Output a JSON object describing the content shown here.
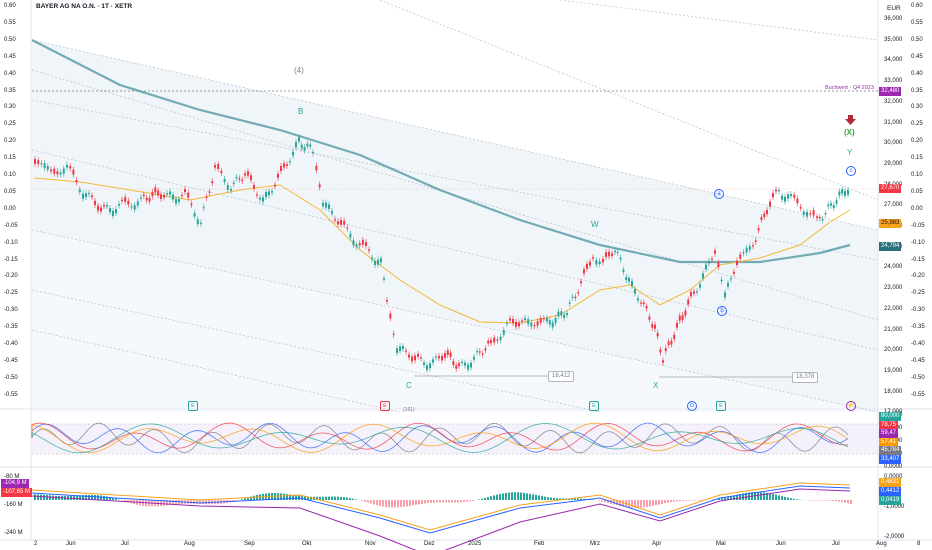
{
  "symbol_title": "BAYER AG NA O.N. · 1T · XETR",
  "currency": "EUR",
  "left_axis": [
    "0.60",
    "0.55",
    "0.50",
    "0.45",
    "0.40",
    "0.35",
    "0.30",
    "0.25",
    "0.20",
    "0.15",
    "0.10",
    "0.05",
    "0.00",
    "-0.05",
    "-0.10",
    "-0.15",
    "-0.20",
    "-0.25",
    "-0.30",
    "-0.35",
    "-0.40",
    "-0.45",
    "-0.50",
    "-0.55"
  ],
  "right_axis_price": [
    "36,000",
    "35,000",
    "34,000",
    "33,000",
    "32,000",
    "31,000",
    "30,000",
    "29,000",
    "28,000",
    "27,000",
    "26,000",
    "25,000",
    "24,000",
    "23,000",
    "22,000",
    "21,000",
    "20,000",
    "19,000",
    "18,000",
    "17,000"
  ],
  "right_axis_fib": [
    "0.60",
    "0.55",
    "0.50",
    "0.45",
    "0.40",
    "0.35",
    "0.30",
    "0.25",
    "0.20",
    "0.15",
    "0.10",
    "0.05",
    "0.00",
    "-0.05",
    "-0.10",
    "-0.15",
    "-0.20",
    "-0.25",
    "-0.30",
    "-0.35",
    "-0.40",
    "-0.45",
    "-0.50",
    "-0.55"
  ],
  "price_tags": {
    "book_value": {
      "text": "32,480",
      "color": "#9c27b0"
    },
    "last": {
      "text": "27,670",
      "color": "#f23645"
    },
    "ema_short": {
      "text": "25,983",
      "color": "#f7a21b"
    },
    "ema_long": {
      "text": "24,794",
      "color": "#2a6f7a"
    }
  },
  "book_value_label": "Buchwert · Q4 2023",
  "wave_labels": {
    "w4": "(4)",
    "b": "B",
    "c": "C",
    "w": "W",
    "x": "X",
    "y": "Y",
    "xx": "(X)",
    "a_small": "a",
    "b_small": "b",
    "c_small": "c"
  },
  "callouts": {
    "low1": "16,412",
    "low2": "18,378"
  },
  "osc_axis": [
    "80,000",
    "60,000",
    "40,000",
    "20,000",
    "0,0000"
  ],
  "osc_tags": [
    {
      "text": "80,000",
      "color": "#26a69a"
    },
    {
      "text": "78,75",
      "color": "#f23645"
    },
    {
      "text": "59,47",
      "color": "#9c27b0"
    },
    {
      "text": "57,41",
      "color": "#ff9800"
    },
    {
      "text": "45,784",
      "color": "#787b86"
    },
    {
      "text": "33,407",
      "color": "#2962ff"
    }
  ],
  "macd_axis_left": [
    "-80 M",
    "-160 M",
    "-240 M"
  ],
  "macd_left_tags": [
    {
      "text": "-104,9 M",
      "color": "#9c27b0"
    },
    {
      "text": "-107,65 M",
      "color": "#f23645"
    }
  ],
  "macd_axis_right": [
    "0,0000",
    "-1,0000",
    "-2,0000"
  ],
  "macd_tags": [
    {
      "text": "0,4831",
      "color": "#f7a21b"
    },
    {
      "text": "0,4412",
      "color": "#2962ff"
    },
    {
      "text": "0,0419",
      "color": "#26a69a"
    }
  ],
  "time_axis": [
    "2",
    "Jun",
    "Jul",
    "Aug",
    "Sep",
    "Okt",
    "Nov",
    "Dez",
    "2025",
    "Feb",
    "Mrz",
    "Apr",
    "Mai",
    "Jun",
    "Jul",
    "Aug",
    "8"
  ],
  "event_badges": [
    "E",
    "E",
    "E",
    "D",
    "E"
  ],
  "dividend_badge": "(161)",
  "colors": {
    "up": "#26a69a",
    "down": "#f23645",
    "ema_long": "#5b9ea6",
    "ema_short": "#f7b733"
  }
}
